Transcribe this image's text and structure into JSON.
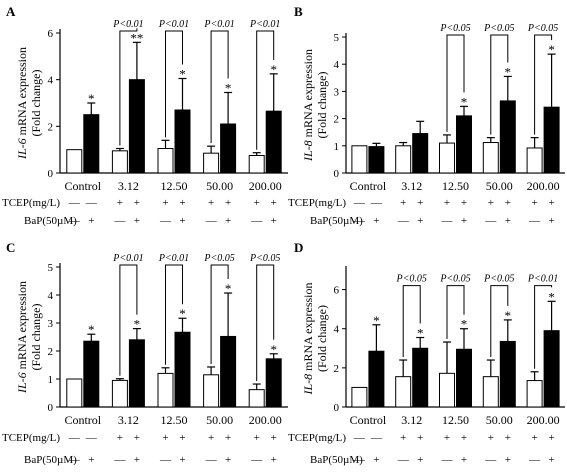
{
  "figure": {
    "row_labels": {
      "tcep": "TCEP(mg/L)",
      "bap": "BaP(50µM)"
    }
  },
  "chart_data": [
    {
      "panel": "A",
      "type": "bar",
      "gene": "IL-6",
      "ylabel_gene": "IL-6",
      "ylabel_rest": " mRNA expression",
      "ylabel_line2": "(Fold change)",
      "ylim": [
        0,
        6
      ],
      "yticks": [
        0,
        2,
        4,
        6
      ],
      "categories": [
        "Control",
        "3.12",
        "12.50",
        "50.00",
        "200.00"
      ],
      "tcep_signs": [
        "—",
        "+",
        "+",
        "+",
        "+"
      ],
      "series": [
        {
          "fill": "white",
          "values": [
            1.0,
            0.95,
            1.05,
            0.85,
            0.75
          ],
          "errors": [
            0.0,
            0.1,
            0.35,
            0.3,
            0.12
          ],
          "marks": [
            "",
            "",
            "",
            "",
            ""
          ],
          "bap_signs": [
            "—",
            "—",
            "—",
            "—",
            "—"
          ]
        },
        {
          "fill": "black",
          "values": [
            2.5,
            4.0,
            2.7,
            2.1,
            2.65
          ],
          "errors": [
            0.5,
            1.6,
            1.35,
            1.35,
            1.6
          ],
          "marks": [
            "*",
            "**",
            "*",
            "*",
            "*"
          ],
          "bap_signs": [
            "+",
            "+",
            "+",
            "+",
            "+"
          ]
        }
      ],
      "comparisons": [
        "",
        "P<0.01",
        "P<0.01",
        "P<0.01",
        "P<0.01"
      ],
      "bracket_y": 6.0
    },
    {
      "panel": "B",
      "type": "bar",
      "gene": "IL-8",
      "ylabel_gene": "IL-8",
      "ylabel_rest": " mRNA expression",
      "ylabel_line2": "(Fold change)",
      "ylim": [
        0,
        5
      ],
      "yticks": [
        0,
        1,
        2,
        3,
        4,
        5
      ],
      "categories": [
        "Control",
        "3.12",
        "12.50",
        "50.00",
        "200.00"
      ],
      "tcep_signs": [
        "—",
        "+",
        "+",
        "+",
        "+"
      ],
      "series": [
        {
          "fill": "white",
          "values": [
            1.0,
            1.0,
            1.1,
            1.12,
            0.92
          ],
          "errors": [
            0.0,
            0.12,
            0.3,
            0.18,
            0.38
          ],
          "marks": [
            "",
            "",
            "",
            "",
            ""
          ],
          "bap_signs": [
            "—",
            "—",
            "—",
            "—",
            "—"
          ]
        },
        {
          "fill": "black",
          "values": [
            0.97,
            1.45,
            2.1,
            2.65,
            2.42
          ],
          "errors": [
            0.12,
            0.45,
            0.35,
            0.9,
            1.95
          ],
          "marks": [
            "",
            "",
            "*",
            "*",
            "*"
          ],
          "bap_signs": [
            "+",
            "+",
            "+",
            "+",
            "+"
          ]
        }
      ],
      "comparisons": [
        "",
        "",
        "P<0.05",
        "P<0.05",
        "P<0.05"
      ],
      "bracket_y": 5.0
    },
    {
      "panel": "C",
      "type": "bar",
      "gene": "IL-6",
      "ylabel_gene": "IL-6",
      "ylabel_rest": " mRNA expression",
      "ylabel_line2": "(Fold change)",
      "ylim": [
        0,
        5
      ],
      "yticks": [
        0,
        1,
        2,
        3,
        4,
        5
      ],
      "categories": [
        "Control",
        "3.12",
        "12.50",
        "50.00",
        "200.00"
      ],
      "tcep_signs": [
        "—",
        "+",
        "+",
        "+",
        "+"
      ],
      "series": [
        {
          "fill": "white",
          "values": [
            1.0,
            0.95,
            1.2,
            1.15,
            0.62
          ],
          "errors": [
            0.0,
            0.06,
            0.2,
            0.28,
            0.2
          ],
          "marks": [
            "",
            "",
            "",
            "",
            ""
          ],
          "bap_signs": [
            "—",
            "—",
            "—",
            "—",
            "—"
          ]
        },
        {
          "fill": "black",
          "values": [
            2.35,
            2.4,
            2.67,
            2.52,
            1.72
          ],
          "errors": [
            0.25,
            0.4,
            0.5,
            1.55,
            0.18
          ],
          "marks": [
            "*",
            "*",
            "*",
            "*",
            "*"
          ],
          "bap_signs": [
            "+",
            "+",
            "+",
            "+",
            "+"
          ]
        }
      ],
      "comparisons": [
        "",
        "P<0.01",
        "P<0.01",
        "P<0.05",
        "P<0.05"
      ],
      "bracket_y": 5.0
    },
    {
      "panel": "D",
      "type": "bar",
      "gene": "IL-8",
      "ylabel_gene": "IL-8",
      "ylabel_rest": " mRNA expression",
      "ylabel_line2": "(Fold change)",
      "ylim": [
        0,
        7
      ],
      "yticks": [
        0,
        2,
        4,
        6
      ],
      "categories": [
        "Control",
        "3.12",
        "12.50",
        "50.00",
        "200.00"
      ],
      "tcep_signs": [
        "—",
        "+",
        "+",
        "+",
        "+"
      ],
      "series": [
        {
          "fill": "white",
          "values": [
            1.0,
            1.55,
            1.72,
            1.55,
            1.35
          ],
          "errors": [
            0.0,
            0.85,
            1.6,
            0.85,
            0.45
          ],
          "marks": [
            "",
            "",
            "",
            "",
            ""
          ],
          "bap_signs": [
            "—",
            "—",
            "—",
            "—",
            "—"
          ]
        },
        {
          "fill": "black",
          "values": [
            2.85,
            3.0,
            2.95,
            3.35,
            3.9
          ],
          "errors": [
            1.35,
            0.55,
            1.05,
            1.1,
            1.5
          ],
          "marks": [
            "*",
            "*",
            "*",
            "*",
            "*"
          ],
          "bap_signs": [
            "+",
            "+",
            "+",
            "+",
            "+"
          ]
        }
      ],
      "comparisons": [
        "",
        "P<0.05",
        "P<0.05",
        "P<0.05",
        "P<0.01"
      ],
      "bracket_y": 6.1
    }
  ]
}
